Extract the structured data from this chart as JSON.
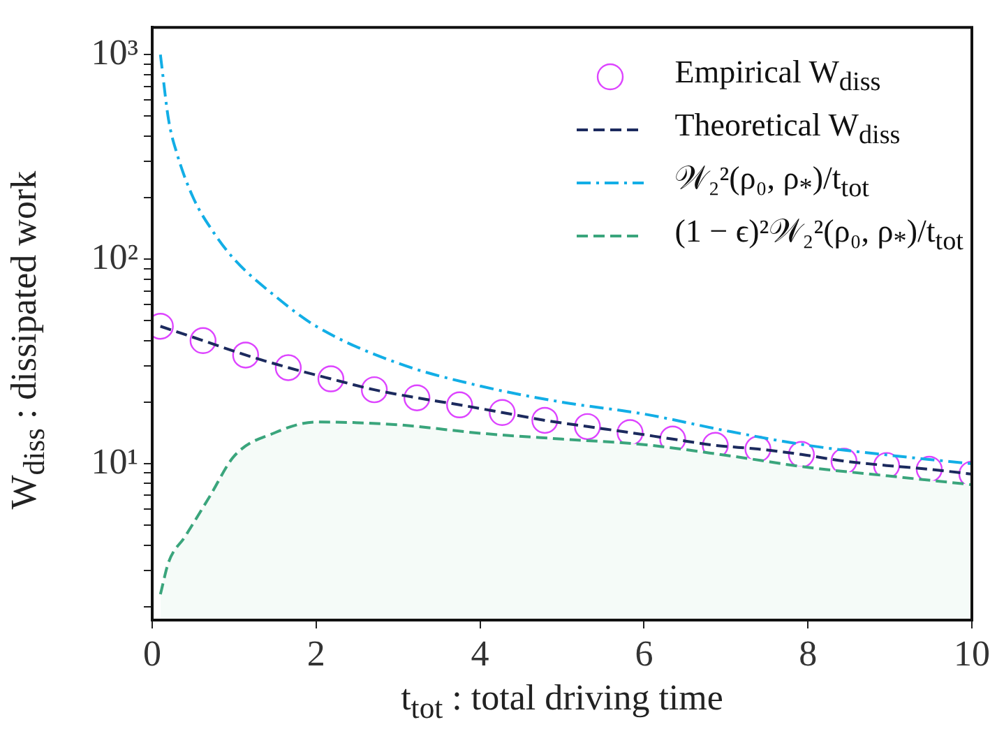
{
  "chart_data": {
    "type": "line",
    "xlabel": "t$_{tot}$ : total driving time",
    "ylabel": "W$_{diss}$ : dissipated work",
    "log": "y",
    "grid": false,
    "legend": "top right",
    "xlim": [
      0,
      10
    ],
    "xticks": [
      0,
      2,
      4,
      6,
      8,
      10
    ],
    "ylim": [
      1.72,
      1360
    ],
    "yticks": [
      {
        "value": 2,
        "label": null
      },
      {
        "value": 3,
        "label": null
      },
      {
        "value": 4,
        "label": null
      },
      {
        "value": 5,
        "label": null
      },
      {
        "value": 6,
        "label": null
      },
      {
        "value": 7,
        "label": null
      },
      {
        "value": 8,
        "label": null
      },
      {
        "value": 9,
        "label": null
      },
      {
        "value": 10,
        "label": "10¹"
      },
      {
        "value": 20,
        "label": null
      },
      {
        "value": 30,
        "label": null
      },
      {
        "value": 40,
        "label": null
      },
      {
        "value": 50,
        "label": null
      },
      {
        "value": 60,
        "label": null
      },
      {
        "value": 70,
        "label": null
      },
      {
        "value": 80,
        "label": null
      },
      {
        "value": 90,
        "label": null
      },
      {
        "value": 100,
        "label": "10²"
      },
      {
        "value": 200,
        "label": null
      },
      {
        "value": 300,
        "label": null
      },
      {
        "value": 400,
        "label": null
      },
      {
        "value": 500,
        "label": null
      },
      {
        "value": 600,
        "label": null
      },
      {
        "value": 700,
        "label": null
      },
      {
        "value": 800,
        "label": null
      },
      {
        "value": 900,
        "label": null
      },
      {
        "value": 1000,
        "label": "10³"
      }
    ],
    "series": [
      {
        "name": "Empirical W$_{diss}$",
        "type": "scatter",
        "marker": "circle",
        "color": "#dd44ff",
        "x": [
          0.1,
          0.62,
          1.14,
          1.66,
          2.18,
          2.71,
          3.23,
          3.75,
          4.27,
          4.79,
          5.31,
          5.83,
          6.35,
          6.87,
          7.39,
          7.92,
          8.44,
          8.96,
          9.48,
          10
        ],
        "values": [
          47,
          40,
          34,
          29.5,
          26,
          23,
          21,
          19.4,
          17.8,
          16.3,
          15.2,
          14.2,
          13.2,
          12.3,
          11.8,
          11.1,
          10.3,
          9.8,
          9.4,
          8.9
        ]
      },
      {
        "name": "Theoretical W$_{diss}$",
        "type": "line",
        "line_style": "dashed",
        "color": "#1c2a5e",
        "x": [
          0.1,
          0.62,
          1.14,
          1.66,
          2.18,
          2.71,
          3.23,
          3.75,
          4.27,
          4.79,
          5.31,
          5.83,
          6.35,
          6.87,
          7.39,
          7.92,
          8.44,
          8.96,
          9.48,
          10
        ],
        "values": [
          47,
          40,
          34,
          29.5,
          26,
          23,
          21,
          19.4,
          17.8,
          16.3,
          15.2,
          14.2,
          13.2,
          12.3,
          11.8,
          11.1,
          10.3,
          9.8,
          9.4,
          8.9
        ]
      },
      {
        "name": "𝒲₂²(ρ₀, ρ$_{*}$)/t$_{tot}$",
        "type": "line",
        "line_style": "dashdot",
        "color": "#12aee6",
        "x": [
          0.1,
          0.2,
          0.3,
          0.5,
          0.75,
          1,
          1.5,
          2,
          3,
          4,
          5,
          6,
          7,
          8,
          9,
          10
        ],
        "values": [
          1000,
          480,
          330,
          200,
          135,
          100,
          66,
          47,
          31,
          24,
          20,
          17.5,
          14.5,
          12.3,
          11,
          10
        ]
      },
      {
        "name": "(1 − ϵ)²𝒲₂²(ρ₀, ρ$_{*}$)/t$_{tot}$",
        "type": "area",
        "line_style": "dashed",
        "color": "#3aa57c",
        "x": [
          0.1,
          0.2,
          0.4,
          0.7,
          1,
          1.5,
          2,
          3,
          4,
          5,
          6,
          7,
          8,
          9,
          10
        ],
        "values": [
          2.3,
          3.3,
          4.4,
          6.9,
          10.9,
          14.2,
          16,
          15.5,
          14.1,
          13.2,
          12.4,
          11,
          9.6,
          8.7,
          7.9
        ]
      }
    ]
  }
}
